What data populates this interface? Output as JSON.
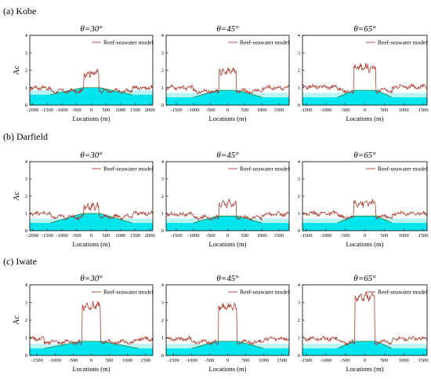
{
  "colors": {
    "model_line": "#b03a2e",
    "seawater": "#00e5ee",
    "seawater_light": "#b8f4f6",
    "reef_profile": "#2e7d32",
    "axis": "#000000"
  },
  "chart_data": [
    {
      "row_label": "(a) Kobe",
      "title": "θ=30°",
      "type": "line",
      "xlabel": "Locations (m)",
      "ylabel": "Ac",
      "xlim": [
        -2100,
        2100
      ],
      "ylim": [
        0,
        4
      ],
      "xticks": [
        -2000,
        -1500,
        -1000,
        -500,
        0,
        500,
        1000,
        1500,
        2000
      ],
      "yticks": [
        0,
        1,
        2,
        3,
        4
      ],
      "legend": "Reef-seawater model",
      "legend_position": "top-right",
      "plateau_halfwidth": 250,
      "plateau_level": 1.85,
      "side_level": 1.0,
      "reef_halfwidth": 1400,
      "reef_top": 1.0,
      "reef_top_halfwidth": 300,
      "sea_level": 0.6
    },
    {
      "row_label": "",
      "title": "θ=45°",
      "type": "line",
      "xlabel": "Locations (m)",
      "ylabel": "",
      "xlim": [
        -1800,
        1800
      ],
      "ylim": [
        0,
        4
      ],
      "xticks": [
        -1500,
        -1000,
        -500,
        0,
        500,
        1000,
        1500
      ],
      "yticks": [
        0,
        1,
        2,
        3,
        4
      ],
      "legend": "Reef-seawater model",
      "legend_position": "top-right",
      "plateau_halfwidth": 250,
      "plateau_level": 1.95,
      "side_level": 1.0,
      "reef_halfwidth": 1000,
      "reef_top": 0.85,
      "reef_top_halfwidth": 300,
      "sea_level": 0.45
    },
    {
      "row_label": "",
      "title": "θ=65°",
      "type": "line",
      "xlabel": "Locations (m)",
      "ylabel": "",
      "xlim": [
        -1600,
        1600
      ],
      "ylim": [
        0,
        4
      ],
      "xticks": [
        -1500,
        -1000,
        -500,
        0,
        500,
        1000,
        1500
      ],
      "yticks": [
        0,
        1,
        2,
        3,
        4
      ],
      "legend": "Reef-seawater model",
      "legend_position": "top-right",
      "plateau_halfwidth": 280,
      "plateau_level": 2.15,
      "side_level": 1.05,
      "reef_halfwidth": 700,
      "reef_top": 0.85,
      "reef_top_halfwidth": 300,
      "sea_level": 0.45
    },
    {
      "row_label": "(b) Darfield",
      "title": "θ=30°",
      "type": "line",
      "xlabel": "Locations (m)",
      "ylabel": "Ac",
      "xlim": [
        -2100,
        2100
      ],
      "ylim": [
        0,
        4
      ],
      "xticks": [
        -2000,
        -1500,
        -1000,
        -500,
        0,
        500,
        1000,
        1500,
        2000
      ],
      "yticks": [
        0,
        1,
        2,
        3,
        4
      ],
      "legend": "Reef-seawater model",
      "legend_position": "top-right",
      "plateau_halfwidth": 250,
      "plateau_level": 1.4,
      "side_level": 1.0,
      "reef_halfwidth": 1400,
      "reef_top": 1.0,
      "reef_top_halfwidth": 300,
      "sea_level": 0.45
    },
    {
      "row_label": "",
      "title": "θ=45°",
      "type": "line",
      "xlabel": "Locations (m)",
      "ylabel": "",
      "xlim": [
        -1800,
        1800
      ],
      "ylim": [
        0,
        4
      ],
      "xticks": [
        -1500,
        -1000,
        -500,
        0,
        500,
        1000,
        1500
      ],
      "yticks": [
        0,
        1,
        2,
        3,
        4
      ],
      "legend": "Reef-seawater model",
      "legend_position": "top-right",
      "plateau_halfwidth": 250,
      "plateau_level": 1.55,
      "side_level": 0.95,
      "reef_halfwidth": 1000,
      "reef_top": 0.85,
      "reef_top_halfwidth": 300,
      "sea_level": 0.45
    },
    {
      "row_label": "",
      "title": "θ=65°",
      "type": "line",
      "xlabel": "Locations (m)",
      "ylabel": "",
      "xlim": [
        -1600,
        1600
      ],
      "ylim": [
        0,
        4
      ],
      "xticks": [
        -1500,
        -1000,
        -500,
        0,
        500,
        1000,
        1500
      ],
      "yticks": [
        0,
        1,
        2,
        3,
        4
      ],
      "legend": "Reef-seawater model",
      "legend_position": "top-right",
      "plateau_halfwidth": 280,
      "plateau_level": 1.6,
      "side_level": 1.0,
      "reef_halfwidth": 700,
      "reef_top": 0.85,
      "reef_top_halfwidth": 300,
      "sea_level": 0.45
    },
    {
      "row_label": "(c) Iwate",
      "title": "θ=30°",
      "type": "line",
      "xlabel": "Locations (m)",
      "ylabel": "Ac",
      "xlim": [
        -1700,
        1700
      ],
      "ylim": [
        0,
        4
      ],
      "xticks": [
        -1500,
        -1000,
        -500,
        0,
        500,
        1000,
        1500
      ],
      "yticks": [
        0,
        1,
        2,
        3,
        4
      ],
      "legend": "Reef-seawater model",
      "legend_position": "top-right",
      "plateau_halfwidth": 250,
      "plateau_level": 2.8,
      "side_level": 0.95,
      "reef_halfwidth": 1300,
      "reef_top": 0.8,
      "reef_top_halfwidth": 300,
      "sea_level": 0.4
    },
    {
      "row_label": "",
      "title": "θ=45°",
      "type": "line",
      "xlabel": "Locations (m)",
      "ylabel": "",
      "xlim": [
        -1700,
        1700
      ],
      "ylim": [
        0,
        4
      ],
      "xticks": [
        -1500,
        -1000,
        -500,
        0,
        500,
        1000,
        1500
      ],
      "yticks": [
        0,
        1,
        2,
        3,
        4
      ],
      "legend": "Reef-seawater model",
      "legend_position": "top-right",
      "plateau_halfwidth": 250,
      "plateau_level": 2.75,
      "side_level": 0.95,
      "reef_halfwidth": 1000,
      "reef_top": 0.8,
      "reef_top_halfwidth": 300,
      "sea_level": 0.4
    },
    {
      "row_label": "",
      "title": "θ=65°",
      "type": "line",
      "xlabel": "Locations (m)",
      "ylabel": "",
      "xlim": [
        -1600,
        1600
      ],
      "ylim": [
        0,
        4
      ],
      "xticks": [
        -1500,
        -1000,
        -500,
        0,
        500,
        1000,
        1500
      ],
      "yticks": [
        0,
        1,
        2,
        3,
        4
      ],
      "legend": "Reef-seawater model",
      "legend_position": "top-right",
      "plateau_halfwidth": 260,
      "plateau_level": 3.3,
      "side_level": 0.95,
      "reef_halfwidth": 700,
      "reef_top": 0.8,
      "reef_top_halfwidth": 300,
      "sea_level": 0.4
    }
  ]
}
